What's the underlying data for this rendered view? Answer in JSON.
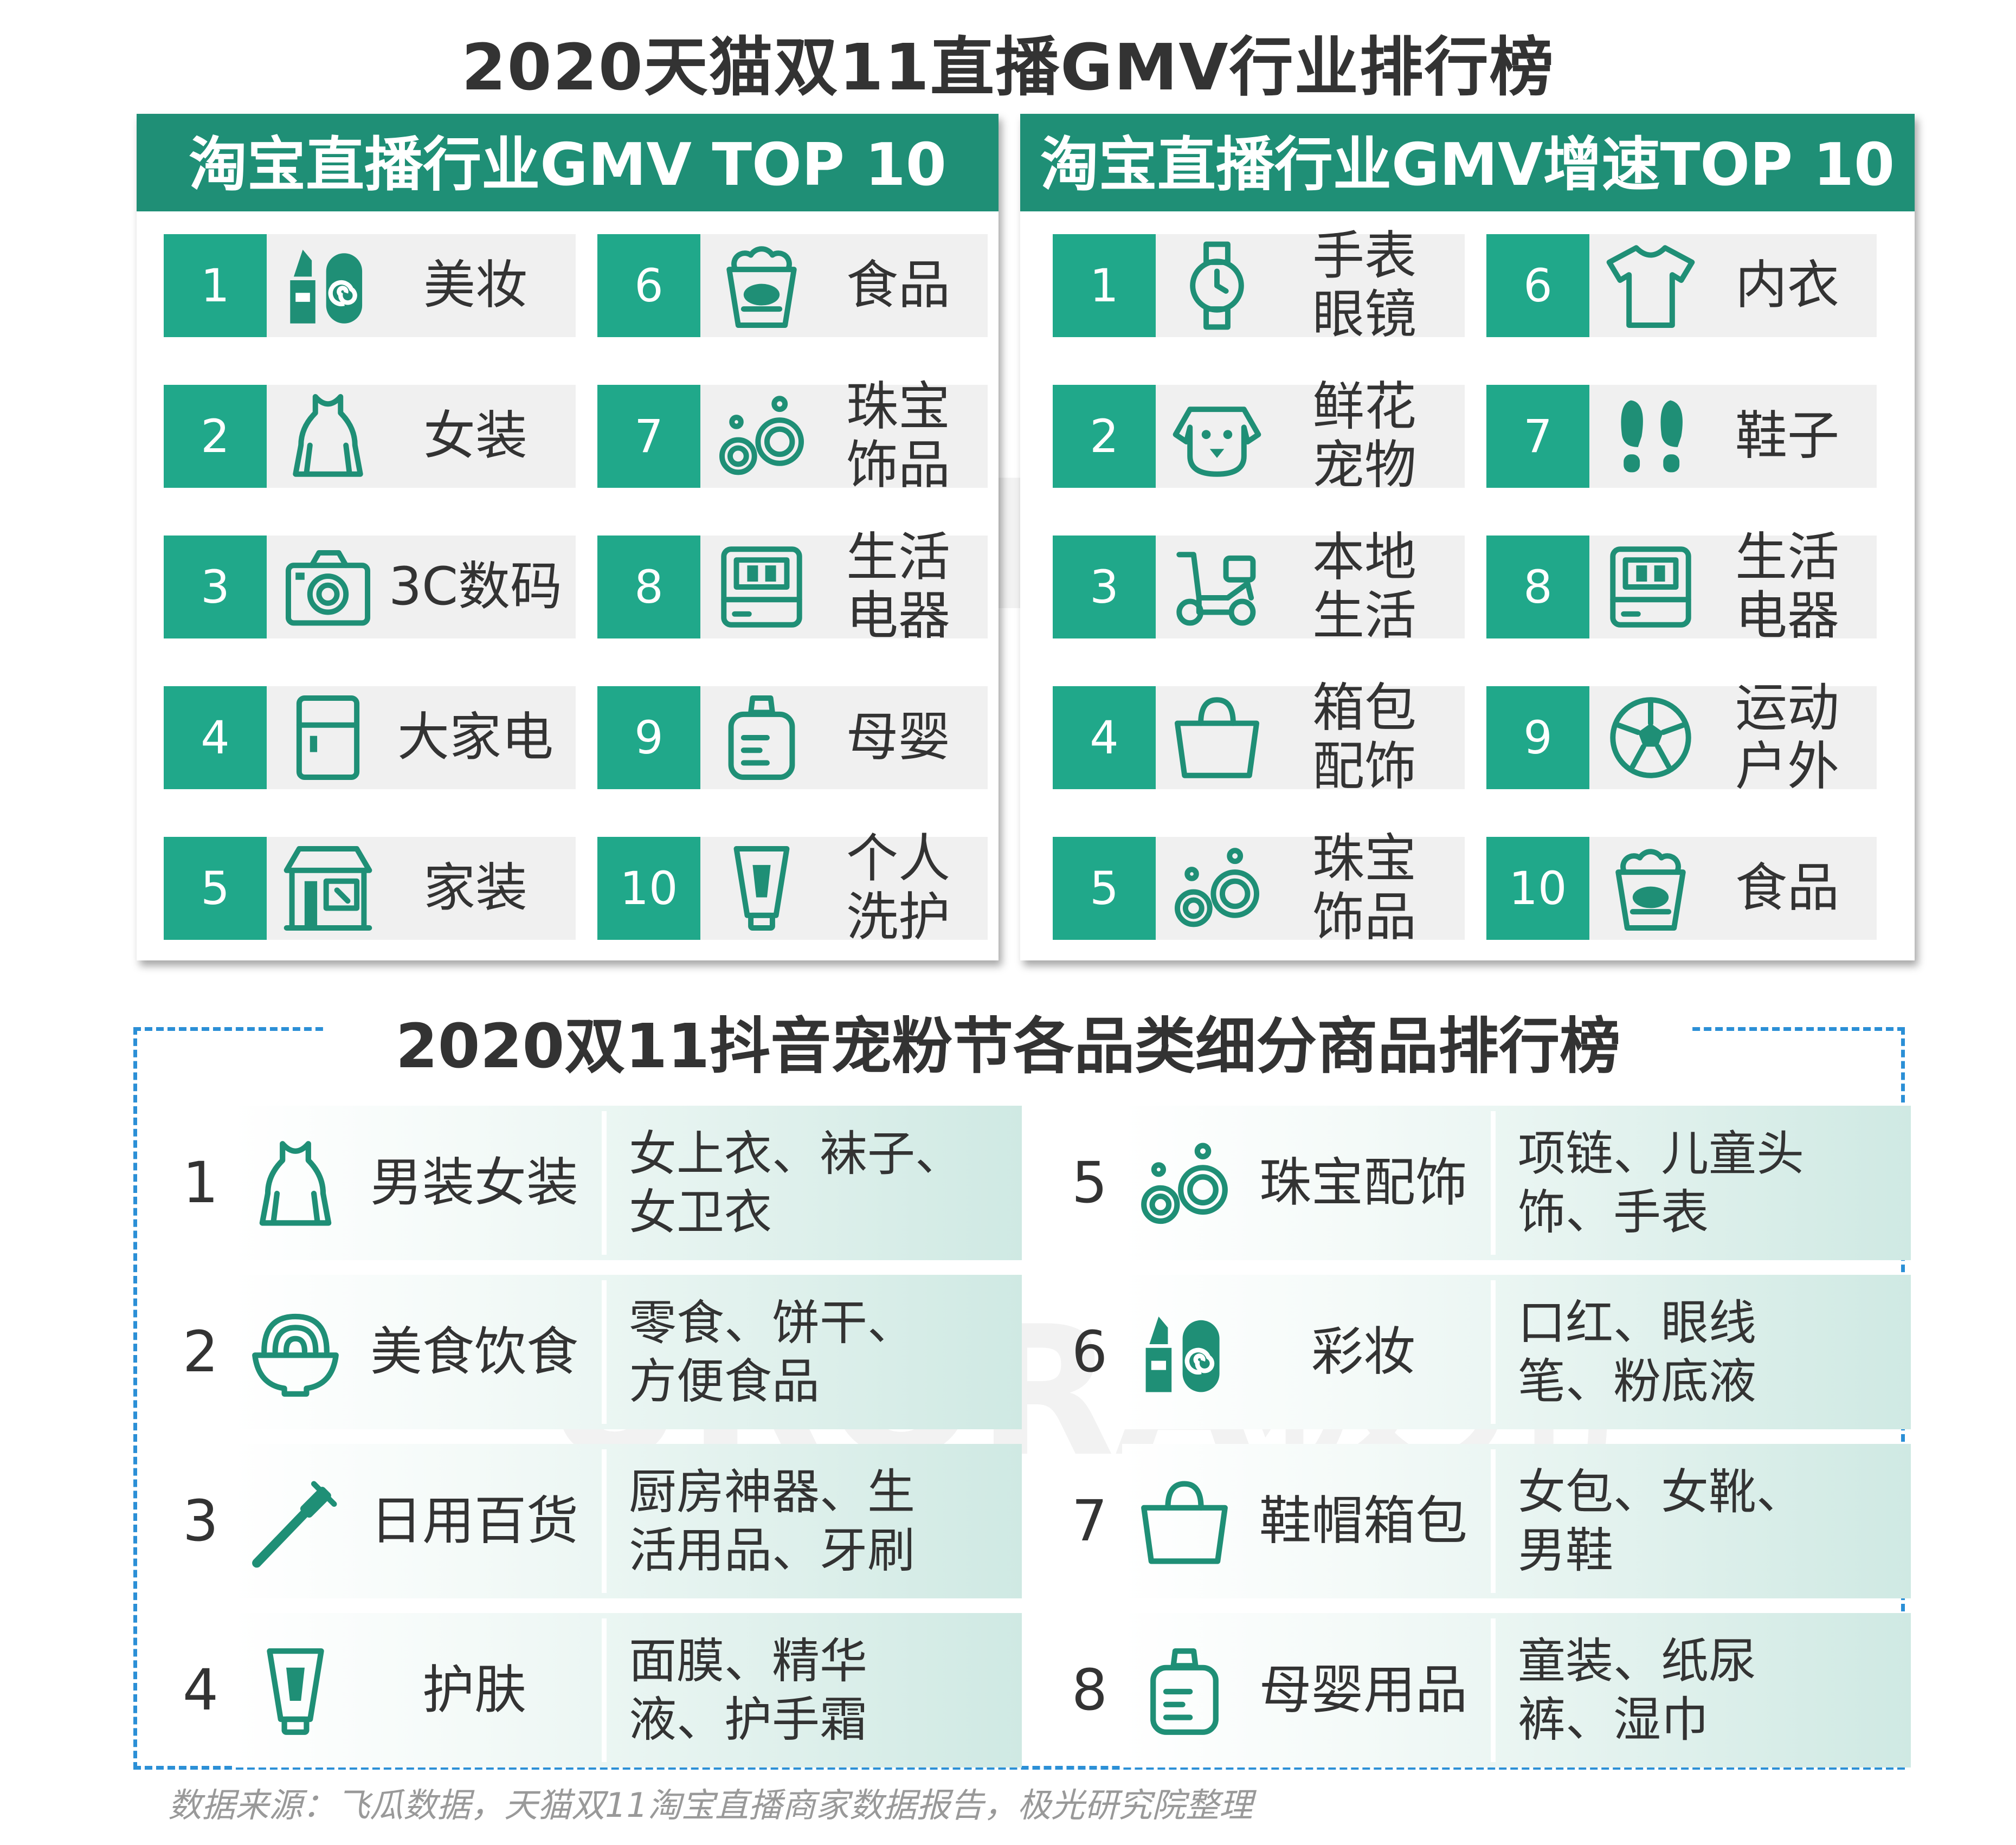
{
  "title": "2020天猫双11直播GMV行业排行榜",
  "watermark": "URORA极光",
  "accent_color": "#1f8f76",
  "box_color": "#20a88a",
  "left_panel": {
    "header": "淘宝直播行业GMV TOP 10",
    "items": [
      {
        "rank": "1",
        "icon": "lipstick-icon",
        "label": "美妆"
      },
      {
        "rank": "2",
        "icon": "dress-icon",
        "label": "女装"
      },
      {
        "rank": "3",
        "icon": "camera-icon",
        "label": "3C数码"
      },
      {
        "rank": "4",
        "icon": "fridge-icon",
        "label": "大家电"
      },
      {
        "rank": "5",
        "icon": "storefront-icon",
        "label": "家装"
      },
      {
        "rank": "6",
        "icon": "popcorn-icon",
        "label": "食品"
      },
      {
        "rank": "7",
        "icon": "earrings-icon",
        "label": "珠宝\n饰品"
      },
      {
        "rank": "8",
        "icon": "appliance-icon",
        "label": "生活\n电器"
      },
      {
        "rank": "9",
        "icon": "baby-bottle-icon",
        "label": "母婴"
      },
      {
        "rank": "10",
        "icon": "tube-icon",
        "label": "个人\n洗护"
      }
    ]
  },
  "right_panel": {
    "header": "淘宝直播行业GMV增速TOP 10",
    "items": [
      {
        "rank": "1",
        "icon": "watch-icon",
        "label": "手表\n眼镜"
      },
      {
        "rank": "2",
        "icon": "dog-icon",
        "label": "鲜花\n宠物"
      },
      {
        "rank": "3",
        "icon": "scooter-icon",
        "label": "本地\n生活"
      },
      {
        "rank": "4",
        "icon": "bag-icon",
        "label": "箱包\n配饰"
      },
      {
        "rank": "5",
        "icon": "earrings-icon",
        "label": "珠宝\n饰品"
      },
      {
        "rank": "6",
        "icon": "tshirt-icon",
        "label": "内衣"
      },
      {
        "rank": "7",
        "icon": "footprints-icon",
        "label": "鞋子"
      },
      {
        "rank": "8",
        "icon": "appliance-icon",
        "label": "生活\n电器"
      },
      {
        "rank": "9",
        "icon": "soccer-ball-icon",
        "label": "运动\n户外"
      },
      {
        "rank": "10",
        "icon": "popcorn-icon",
        "label": "食品"
      }
    ]
  },
  "douyin": {
    "title": "2020双11抖音宠粉节各品类细分商品排行榜",
    "items": [
      {
        "rank": "1",
        "icon": "dress-icon",
        "category": "男装女装",
        "products": "女上衣、袜子、\n女卫衣"
      },
      {
        "rank": "2",
        "icon": "noodle-bowl-icon",
        "category": "美食饮食",
        "products": "零食、饼干、\n方便食品"
      },
      {
        "rank": "3",
        "icon": "toothbrush-icon",
        "category": "日用百货",
        "products": "厨房神器、生\n活用品、牙刷"
      },
      {
        "rank": "4",
        "icon": "tube-icon",
        "category": "护肤",
        "products": "面膜、精华\n液、护手霜"
      },
      {
        "rank": "5",
        "icon": "earrings-icon",
        "category": "珠宝配饰",
        "products": "项链、儿童头\n饰、手表"
      },
      {
        "rank": "6",
        "icon": "lipstick-icon",
        "category": "彩妆",
        "products": "口红、眼线\n笔、粉底液"
      },
      {
        "rank": "7",
        "icon": "bag-icon",
        "category": "鞋帽箱包",
        "products": "女包、女靴、\n男鞋"
      },
      {
        "rank": "8",
        "icon": "baby-bottle-icon",
        "category": "母婴用品",
        "products": "童装、纸尿\n裤、湿巾"
      }
    ]
  },
  "source": "数据来源：飞瓜数据，天猫双11淘宝直播商家数据报告，极光研究院整理"
}
